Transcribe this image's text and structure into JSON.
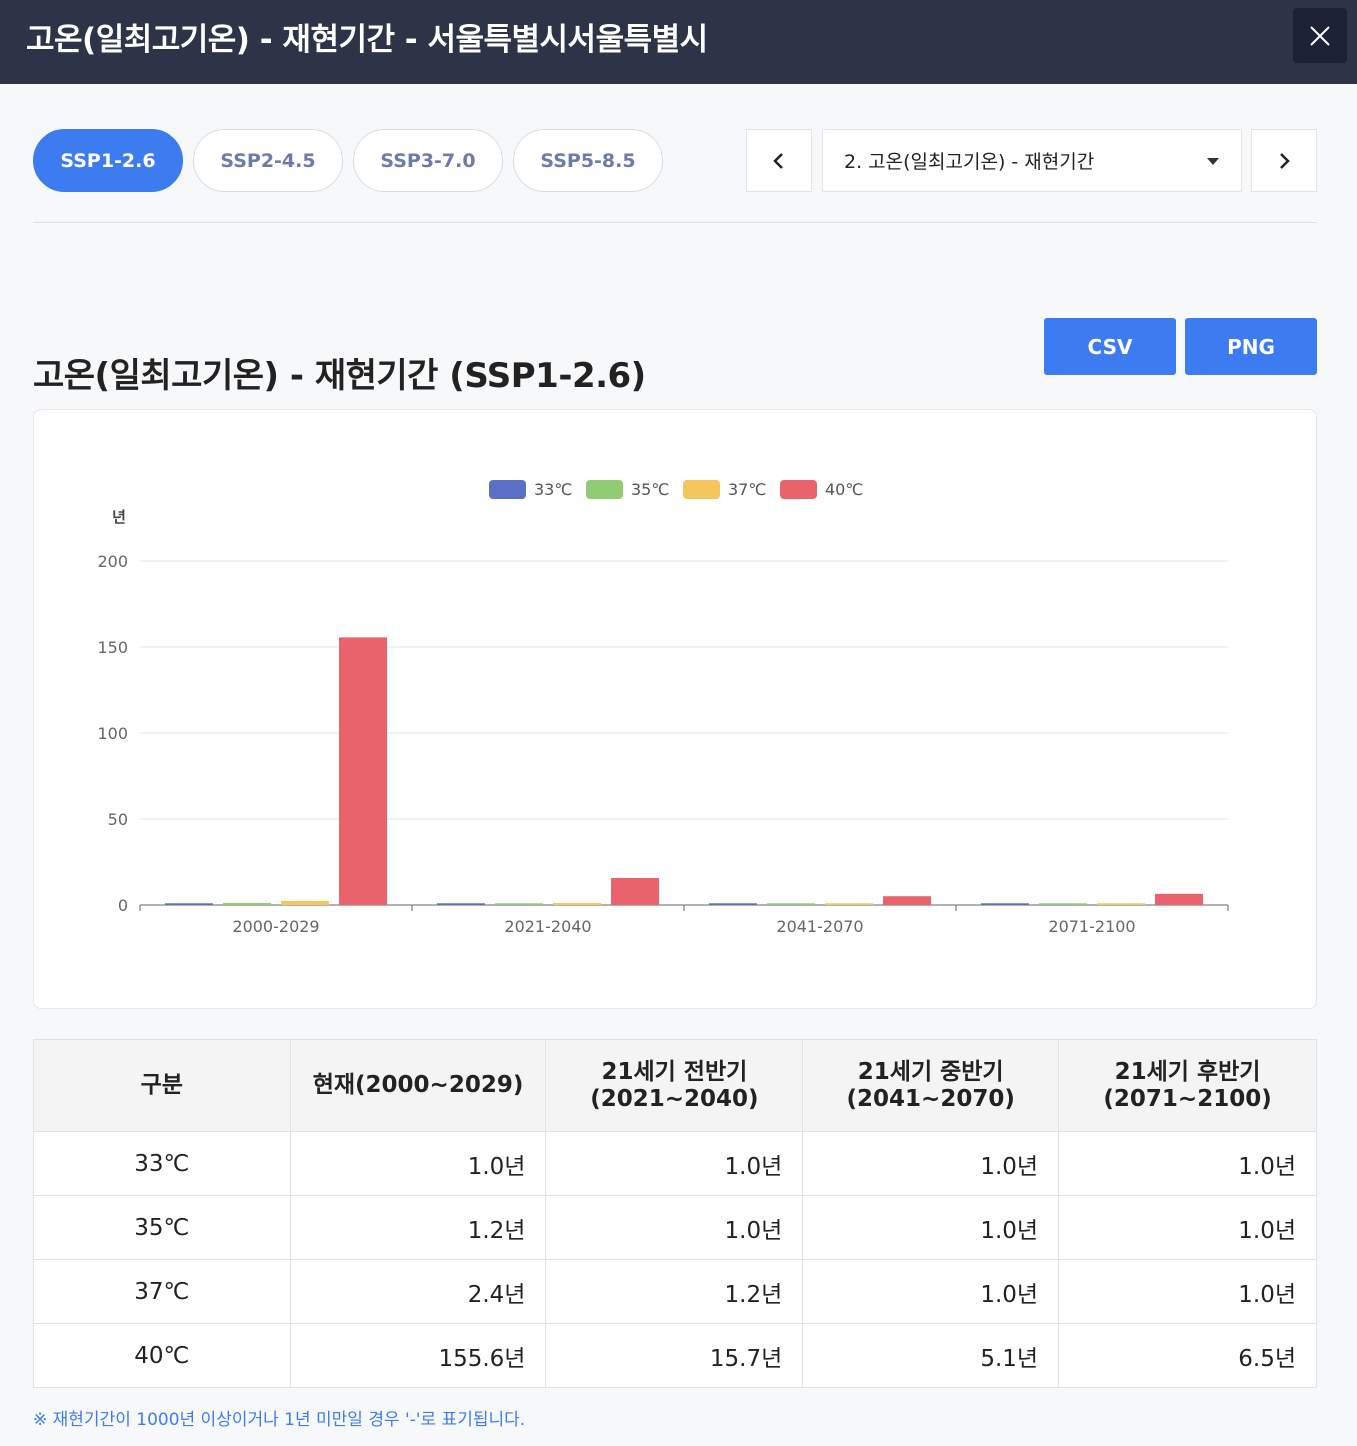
{
  "header": {
    "title": "고온(일최고기온) - 재현기간 - 서울특별시서울특별시"
  },
  "tabs": [
    {
      "label": "SSP1-2.6",
      "active": true
    },
    {
      "label": "SSP2-4.5",
      "active": false
    },
    {
      "label": "SSP3-7.0",
      "active": false
    },
    {
      "label": "SSP5-8.5",
      "active": false
    }
  ],
  "selector": {
    "value": "2. 고온(일최고기온) - 재현기간"
  },
  "buttons": {
    "csv": "CSV",
    "png": "PNG"
  },
  "chart_title": "고온(일최고기온) - 재현기간 (SSP1-2.6)",
  "chart_data": {
    "type": "bar",
    "title": "",
    "ylabel": "년",
    "xlabel": "",
    "ylim": [
      0,
      200
    ],
    "yticks": [
      0,
      50,
      100,
      150,
      200
    ],
    "grid": true,
    "legend_position": "top",
    "categories": [
      "2000-2029",
      "2021-2040",
      "2041-2070",
      "2071-2100"
    ],
    "series": [
      {
        "name": "33℃",
        "color": "#5b70c4",
        "values": [
          1.0,
          1.0,
          1.0,
          1.0
        ]
      },
      {
        "name": "35℃",
        "color": "#91cc75",
        "values": [
          1.2,
          1.0,
          1.0,
          1.0
        ]
      },
      {
        "name": "37℃",
        "color": "#f5c65e",
        "values": [
          2.4,
          1.2,
          1.0,
          1.0
        ]
      },
      {
        "name": "40℃",
        "color": "#e8636b",
        "values": [
          155.6,
          15.7,
          5.1,
          6.5
        ]
      }
    ]
  },
  "table": {
    "headers": [
      "구분",
      "현재(2000~2029)",
      "21세기 전반기\n(2021~2040)",
      "21세기 중반기\n(2041~2070)",
      "21세기 후반기\n(2071~2100)"
    ],
    "rows": [
      [
        "33℃",
        "1.0년",
        "1.0년",
        "1.0년",
        "1.0년"
      ],
      [
        "35℃",
        "1.2년",
        "1.0년",
        "1.0년",
        "1.0년"
      ],
      [
        "37℃",
        "2.4년",
        "1.2년",
        "1.0년",
        "1.0년"
      ],
      [
        "40℃",
        "155.6년",
        "15.7년",
        "5.1년",
        "6.5년"
      ]
    ]
  },
  "note": "※ 재현기간이 1000년 이상이거나 1년 미만일 경우 '-'로 표기됩니다.",
  "icons": {
    "close": "close-icon",
    "prev": "chevron-left-icon",
    "next": "chevron-right-icon",
    "dropdown": "caret-down-icon"
  }
}
